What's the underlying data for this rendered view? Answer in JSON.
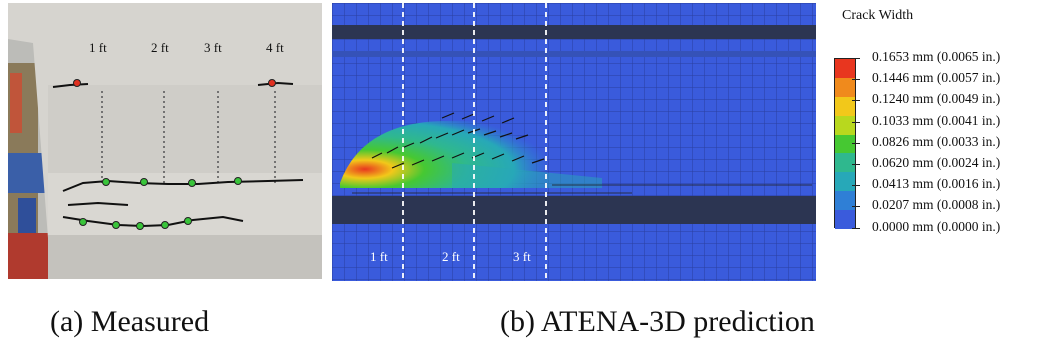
{
  "figure": {
    "panel_a": {
      "caption": "(a) Measured",
      "gauge_labels": [
        "1 ft",
        "2 ft",
        "3 ft",
        "4 ft"
      ]
    },
    "panel_b": {
      "caption": "(b) ATENA-3D prediction",
      "gauge_labels": [
        "1 ft",
        "2 ft",
        "3 ft"
      ]
    },
    "legend": {
      "title": "Crack Width",
      "entries": [
        {
          "label": "0.1653 mm (0.0065 in.)",
          "color": "#e8361f"
        },
        {
          "label": "0.1446 mm (0.0057 in.)",
          "color": "#f08a1c"
        },
        {
          "label": "0.1240 mm (0.0049 in.)",
          "color": "#f2c81a"
        },
        {
          "label": "0.1033 mm (0.0041 in.)",
          "color": "#b8d81e"
        },
        {
          "label": "0.0826 mm (0.0033 in.)",
          "color": "#46c832"
        },
        {
          "label": "0.0620 mm (0.0024 in.)",
          "color": "#2fb88e"
        },
        {
          "label": "0.0413 mm (0.0016 in.)",
          "color": "#27a8b8"
        },
        {
          "label": "0.0207 mm (0.0008 in.)",
          "color": "#2f7fd6"
        },
        {
          "label": "0.0000 mm (0.0000 in.)",
          "color": "#3a5bdc"
        }
      ]
    }
  }
}
